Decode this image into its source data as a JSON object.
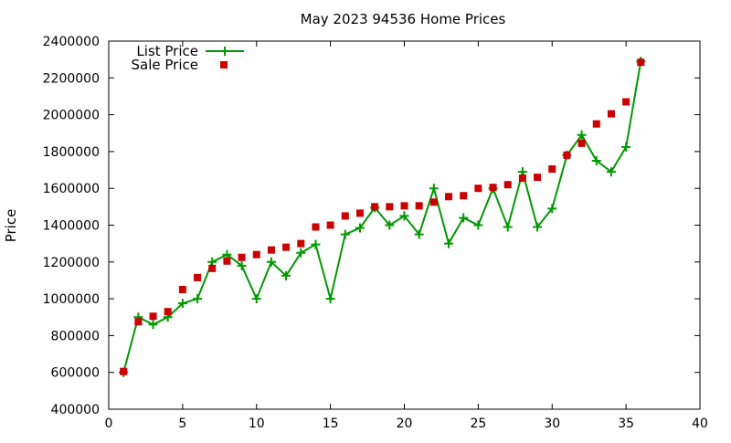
{
  "chart_data": {
    "type": "line",
    "title": "May 2023 94536 Home Prices",
    "xlabel": "",
    "ylabel": "Price",
    "xlim": [
      0,
      40
    ],
    "ylim": [
      400000,
      2400000
    ],
    "x_ticks": [
      "0",
      "5",
      "10",
      "15",
      "20",
      "25",
      "30",
      "35",
      "40"
    ],
    "y_ticks": [
      "400000",
      "600000",
      "800000",
      "1000000",
      "1200000",
      "1400000",
      "1600000",
      "1800000",
      "2000000",
      "2200000",
      "2400000"
    ],
    "x_tick_values": [
      0,
      5,
      10,
      15,
      20,
      25,
      30,
      35,
      40
    ],
    "y_tick_values": [
      400000,
      600000,
      800000,
      1000000,
      1200000,
      1400000,
      1600000,
      1800000,
      2000000,
      2200000,
      2400000
    ],
    "grid": false,
    "legend_position": "top-left",
    "series": [
      {
        "name": "List Price",
        "style": "line-with-plus-markers",
        "color": "#009900",
        "x": [
          1,
          2,
          3,
          4,
          5,
          6,
          7,
          8,
          9,
          10,
          11,
          12,
          13,
          14,
          15,
          16,
          17,
          18,
          19,
          20,
          21,
          22,
          23,
          24,
          25,
          26,
          27,
          28,
          29,
          30,
          31,
          32,
          33,
          34,
          35,
          36
        ],
        "y": [
          600000,
          900000,
          860000,
          900000,
          975000,
          1000000,
          1200000,
          1240000,
          1180000,
          1000000,
          1200000,
          1125000,
          1250000,
          1295000,
          1000000,
          1350000,
          1385000,
          1495000,
          1400000,
          1450000,
          1350000,
          1600000,
          1300000,
          1440000,
          1400000,
          1600000,
          1390000,
          1690000,
          1390000,
          1490000,
          1780000,
          1890000,
          1750000,
          1690000,
          1825000,
          2290000
        ]
      },
      {
        "name": "Sale Price",
        "style": "square-markers",
        "color": "#cc0000",
        "x": [
          1,
          2,
          3,
          4,
          5,
          6,
          7,
          8,
          9,
          10,
          11,
          12,
          13,
          14,
          15,
          16,
          17,
          18,
          19,
          20,
          21,
          22,
          23,
          24,
          25,
          26,
          27,
          28,
          29,
          30,
          31,
          32,
          33,
          34,
          35,
          36
        ],
        "y": [
          605000,
          875000,
          905000,
          930000,
          1050000,
          1115000,
          1165000,
          1205000,
          1225000,
          1240000,
          1265000,
          1280000,
          1300000,
          1390000,
          1400000,
          1450000,
          1465000,
          1500000,
          1500000,
          1505000,
          1505000,
          1525000,
          1555000,
          1560000,
          1600000,
          1605000,
          1620000,
          1655000,
          1660000,
          1705000,
          1780000,
          1845000,
          1950000,
          2005000,
          2070000,
          2285000
        ]
      }
    ]
  }
}
